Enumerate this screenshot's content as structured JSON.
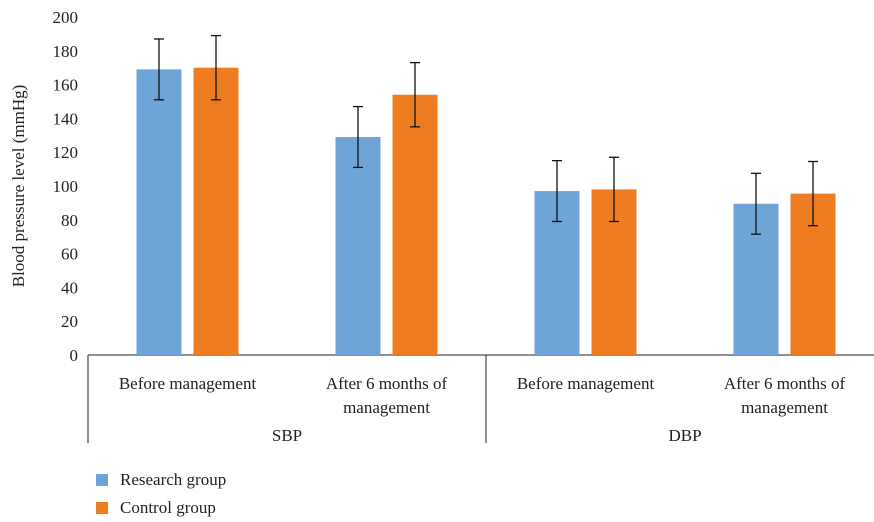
{
  "chart_data": {
    "type": "bar",
    "ylabel": "Blood pressure level (mmHg)",
    "ylim": [
      0,
      200
    ],
    "yticks": [
      0,
      20,
      40,
      60,
      80,
      100,
      120,
      140,
      160,
      180,
      200
    ],
    "groups": [
      {
        "label": "SBP",
        "categories": [
          {
            "label_lines": [
              "Before management"
            ]
          },
          {
            "label_lines": [
              "After 6 months of",
              "management"
            ]
          }
        ]
      },
      {
        "label": "DBP",
        "categories": [
          {
            "label_lines": [
              "Before management"
            ]
          },
          {
            "label_lines": [
              "After 6 months of",
              "management"
            ]
          }
        ]
      }
    ],
    "series": [
      {
        "name": "Research group",
        "color": "#6fa4d6",
        "values": [
          169,
          129,
          97,
          89.5
        ],
        "errors": [
          18,
          18,
          18,
          18
        ]
      },
      {
        "name": "Control group",
        "color": "#ee7d22",
        "values": [
          170,
          154,
          98,
          95.5
        ],
        "errors": [
          19,
          19,
          19,
          19
        ]
      }
    ],
    "legend_position": "bottom-left",
    "grid": false
  }
}
